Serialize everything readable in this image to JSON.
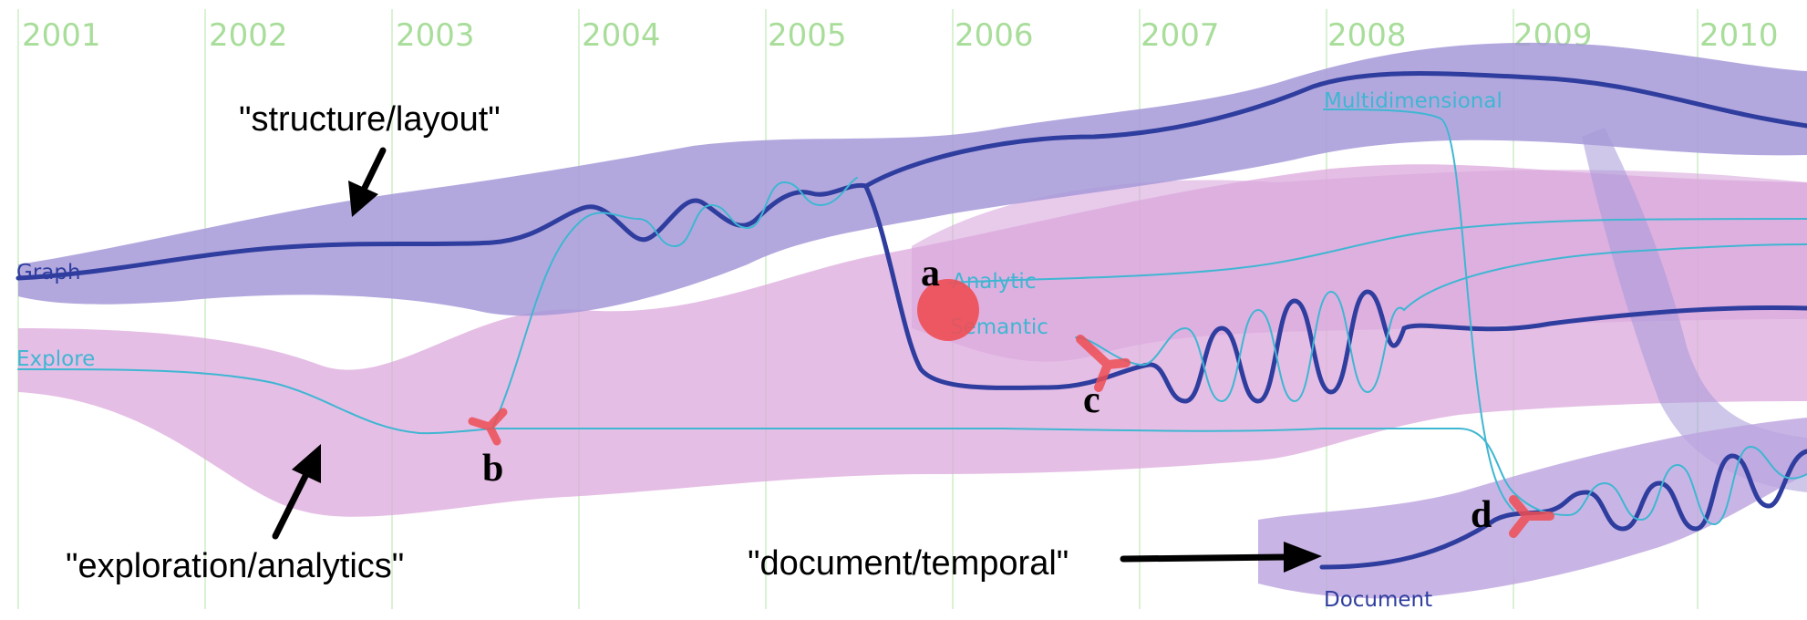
{
  "years": [
    "2001",
    "2002",
    "2003",
    "2004",
    "2005",
    "2006",
    "2007",
    "2008",
    "2009",
    "2010"
  ],
  "topics": {
    "structure": "\"structure/layout\"",
    "exploration": "\"exploration/analytics\"",
    "document": "\"document/temporal\""
  },
  "terms": {
    "graph": "Graph",
    "explore": "Explore",
    "analytic": "Analytic",
    "semantic": "Semantic",
    "multidimensional": "Multidimensional",
    "document": "Document"
  },
  "events": [
    "a",
    "b",
    "c",
    "d"
  ],
  "colors": {
    "background": "#ffffff",
    "year_gridline": "#d9f2d3",
    "year_label": "#a8dd9a",
    "structure_band": "#a699d8",
    "exploration_band": "#dca8dc",
    "document_band": "#bba2df",
    "term_dark": "#2e3d9e",
    "term_light": "#3fb6d2",
    "event_marker": "#ee4e54",
    "annotation": "#000000"
  }
}
